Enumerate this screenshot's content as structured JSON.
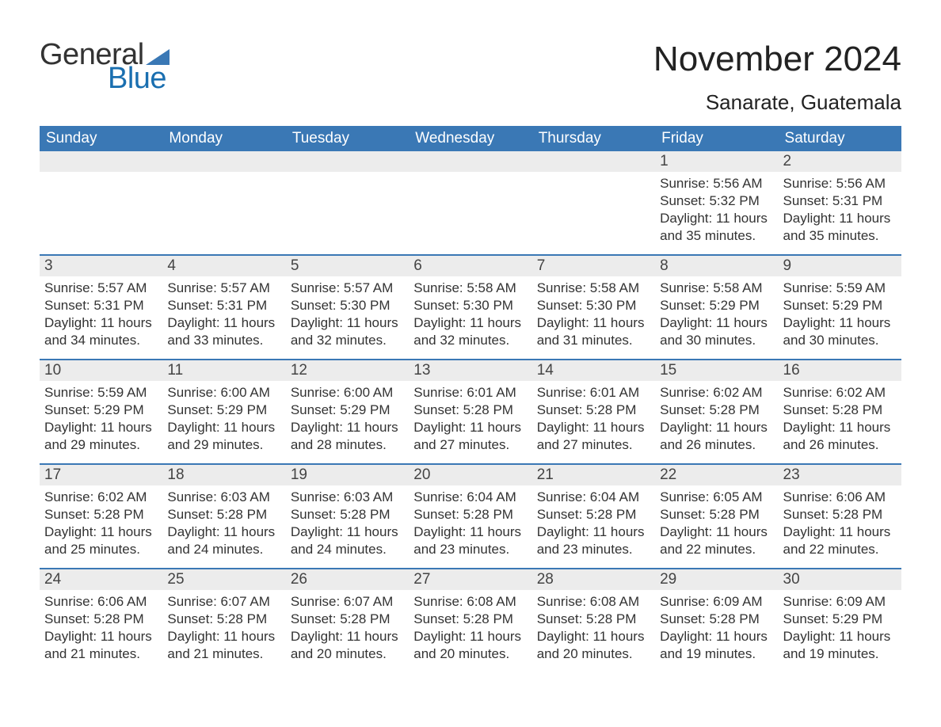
{
  "brand": {
    "text1": "General",
    "text2": "Blue",
    "triangle_color": "#3a78b5",
    "text2_color": "#1a6fb0"
  },
  "header": {
    "title": "November 2024",
    "location": "Sanarate, Guatemala"
  },
  "colors": {
    "header_bg": "#3a78b5",
    "header_text": "#ffffff",
    "row_divider": "#3a78b5",
    "daynum_bg": "#ececec",
    "text": "#333333",
    "page_bg": "#ffffff"
  },
  "typography": {
    "title_fontsize": 44,
    "location_fontsize": 26,
    "weekday_fontsize": 19,
    "daynum_fontsize": 19,
    "body_fontsize": 17
  },
  "weekdays": [
    "Sunday",
    "Monday",
    "Tuesday",
    "Wednesday",
    "Thursday",
    "Friday",
    "Saturday"
  ],
  "weeks": [
    [
      {
        "empty": true
      },
      {
        "empty": true
      },
      {
        "empty": true
      },
      {
        "empty": true
      },
      {
        "empty": true
      },
      {
        "day": "1",
        "sunrise": "Sunrise: 5:56 AM",
        "sunset": "Sunset: 5:32 PM",
        "d1": "Daylight: 11 hours",
        "d2": "and 35 minutes."
      },
      {
        "day": "2",
        "sunrise": "Sunrise: 5:56 AM",
        "sunset": "Sunset: 5:31 PM",
        "d1": "Daylight: 11 hours",
        "d2": "and 35 minutes."
      }
    ],
    [
      {
        "day": "3",
        "sunrise": "Sunrise: 5:57 AM",
        "sunset": "Sunset: 5:31 PM",
        "d1": "Daylight: 11 hours",
        "d2": "and 34 minutes."
      },
      {
        "day": "4",
        "sunrise": "Sunrise: 5:57 AM",
        "sunset": "Sunset: 5:31 PM",
        "d1": "Daylight: 11 hours",
        "d2": "and 33 minutes."
      },
      {
        "day": "5",
        "sunrise": "Sunrise: 5:57 AM",
        "sunset": "Sunset: 5:30 PM",
        "d1": "Daylight: 11 hours",
        "d2": "and 32 minutes."
      },
      {
        "day": "6",
        "sunrise": "Sunrise: 5:58 AM",
        "sunset": "Sunset: 5:30 PM",
        "d1": "Daylight: 11 hours",
        "d2": "and 32 minutes."
      },
      {
        "day": "7",
        "sunrise": "Sunrise: 5:58 AM",
        "sunset": "Sunset: 5:30 PM",
        "d1": "Daylight: 11 hours",
        "d2": "and 31 minutes."
      },
      {
        "day": "8",
        "sunrise": "Sunrise: 5:58 AM",
        "sunset": "Sunset: 5:29 PM",
        "d1": "Daylight: 11 hours",
        "d2": "and 30 minutes."
      },
      {
        "day": "9",
        "sunrise": "Sunrise: 5:59 AM",
        "sunset": "Sunset: 5:29 PM",
        "d1": "Daylight: 11 hours",
        "d2": "and 30 minutes."
      }
    ],
    [
      {
        "day": "10",
        "sunrise": "Sunrise: 5:59 AM",
        "sunset": "Sunset: 5:29 PM",
        "d1": "Daylight: 11 hours",
        "d2": "and 29 minutes."
      },
      {
        "day": "11",
        "sunrise": "Sunrise: 6:00 AM",
        "sunset": "Sunset: 5:29 PM",
        "d1": "Daylight: 11 hours",
        "d2": "and 29 minutes."
      },
      {
        "day": "12",
        "sunrise": "Sunrise: 6:00 AM",
        "sunset": "Sunset: 5:29 PM",
        "d1": "Daylight: 11 hours",
        "d2": "and 28 minutes."
      },
      {
        "day": "13",
        "sunrise": "Sunrise: 6:01 AM",
        "sunset": "Sunset: 5:28 PM",
        "d1": "Daylight: 11 hours",
        "d2": "and 27 minutes."
      },
      {
        "day": "14",
        "sunrise": "Sunrise: 6:01 AM",
        "sunset": "Sunset: 5:28 PM",
        "d1": "Daylight: 11 hours",
        "d2": "and 27 minutes."
      },
      {
        "day": "15",
        "sunrise": "Sunrise: 6:02 AM",
        "sunset": "Sunset: 5:28 PM",
        "d1": "Daylight: 11 hours",
        "d2": "and 26 minutes."
      },
      {
        "day": "16",
        "sunrise": "Sunrise: 6:02 AM",
        "sunset": "Sunset: 5:28 PM",
        "d1": "Daylight: 11 hours",
        "d2": "and 26 minutes."
      }
    ],
    [
      {
        "day": "17",
        "sunrise": "Sunrise: 6:02 AM",
        "sunset": "Sunset: 5:28 PM",
        "d1": "Daylight: 11 hours",
        "d2": "and 25 minutes."
      },
      {
        "day": "18",
        "sunrise": "Sunrise: 6:03 AM",
        "sunset": "Sunset: 5:28 PM",
        "d1": "Daylight: 11 hours",
        "d2": "and 24 minutes."
      },
      {
        "day": "19",
        "sunrise": "Sunrise: 6:03 AM",
        "sunset": "Sunset: 5:28 PM",
        "d1": "Daylight: 11 hours",
        "d2": "and 24 minutes."
      },
      {
        "day": "20",
        "sunrise": "Sunrise: 6:04 AM",
        "sunset": "Sunset: 5:28 PM",
        "d1": "Daylight: 11 hours",
        "d2": "and 23 minutes."
      },
      {
        "day": "21",
        "sunrise": "Sunrise: 6:04 AM",
        "sunset": "Sunset: 5:28 PM",
        "d1": "Daylight: 11 hours",
        "d2": "and 23 minutes."
      },
      {
        "day": "22",
        "sunrise": "Sunrise: 6:05 AM",
        "sunset": "Sunset: 5:28 PM",
        "d1": "Daylight: 11 hours",
        "d2": "and 22 minutes."
      },
      {
        "day": "23",
        "sunrise": "Sunrise: 6:06 AM",
        "sunset": "Sunset: 5:28 PM",
        "d1": "Daylight: 11 hours",
        "d2": "and 22 minutes."
      }
    ],
    [
      {
        "day": "24",
        "sunrise": "Sunrise: 6:06 AM",
        "sunset": "Sunset: 5:28 PM",
        "d1": "Daylight: 11 hours",
        "d2": "and 21 minutes."
      },
      {
        "day": "25",
        "sunrise": "Sunrise: 6:07 AM",
        "sunset": "Sunset: 5:28 PM",
        "d1": "Daylight: 11 hours",
        "d2": "and 21 minutes."
      },
      {
        "day": "26",
        "sunrise": "Sunrise: 6:07 AM",
        "sunset": "Sunset: 5:28 PM",
        "d1": "Daylight: 11 hours",
        "d2": "and 20 minutes."
      },
      {
        "day": "27",
        "sunrise": "Sunrise: 6:08 AM",
        "sunset": "Sunset: 5:28 PM",
        "d1": "Daylight: 11 hours",
        "d2": "and 20 minutes."
      },
      {
        "day": "28",
        "sunrise": "Sunrise: 6:08 AM",
        "sunset": "Sunset: 5:28 PM",
        "d1": "Daylight: 11 hours",
        "d2": "and 20 minutes."
      },
      {
        "day": "29",
        "sunrise": "Sunrise: 6:09 AM",
        "sunset": "Sunset: 5:28 PM",
        "d1": "Daylight: 11 hours",
        "d2": "and 19 minutes."
      },
      {
        "day": "30",
        "sunrise": "Sunrise: 6:09 AM",
        "sunset": "Sunset: 5:29 PM",
        "d1": "Daylight: 11 hours",
        "d2": "and 19 minutes."
      }
    ]
  ]
}
